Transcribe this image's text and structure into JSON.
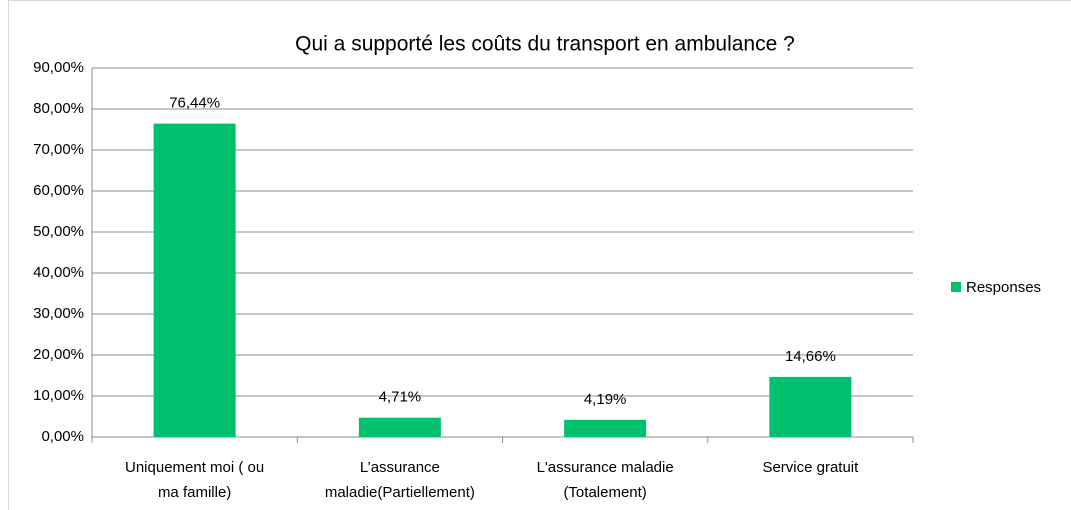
{
  "chart_data": {
    "type": "bar",
    "title": "Qui a supporté les coûts du transport en ambulance ?",
    "categories": [
      "Uniquement moi ( ou\nma famille)",
      "L’assurance\nmaladie(Partiellement)",
      "L'assurance maladie\n(Totalement)",
      "Service gratuit"
    ],
    "series": [
      {
        "name": "Responses",
        "color": "#00c06e",
        "values": [
          76.44,
          4.71,
          4.19,
          14.66
        ],
        "value_labels": [
          "76,44%",
          "4,71%",
          "4,19%",
          "14,66%"
        ]
      }
    ],
    "ylim": [
      0,
      90
    ],
    "yticks": [
      {
        "value": 0,
        "label": "0,00%"
      },
      {
        "value": 10,
        "label": "10,00%"
      },
      {
        "value": 20,
        "label": "20,00%"
      },
      {
        "value": 30,
        "label": "30,00%"
      },
      {
        "value": 40,
        "label": "40,00%"
      },
      {
        "value": 50,
        "label": "50,00%"
      },
      {
        "value": 60,
        "label": "60,00%"
      },
      {
        "value": 70,
        "label": "70,00%"
      },
      {
        "value": 80,
        "label": "80,00%"
      },
      {
        "value": 90,
        "label": "90,00%"
      }
    ],
    "grid": true,
    "legend": "right"
  }
}
